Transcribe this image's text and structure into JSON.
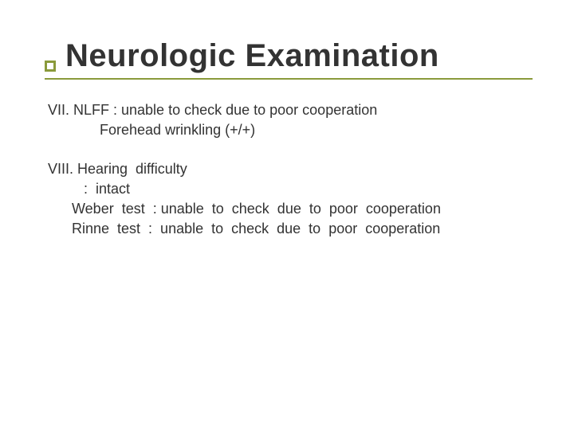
{
  "title": "Neurologic Examination",
  "title_fontsize": 40,
  "title_color": "#333333",
  "bullet_border_color": "#8a9a3b",
  "underline_color": "#8a9a3b",
  "body_fontsize": 18,
  "body_color": "#333333",
  "background_color": "#ffffff",
  "lines": {
    "l1": "VII. NLFF : unable to check due to poor cooperation",
    "l2": "             Forehead wrinkling (+/+)",
    "l3": "VIII. Hearing  difficulty",
    "l4": "         :  intact",
    "l5": "      Weber  test  : unable  to  check  due  to  poor  cooperation",
    "l6": "      Rinne  test  :  unable  to  check  due  to  poor  cooperation"
  }
}
